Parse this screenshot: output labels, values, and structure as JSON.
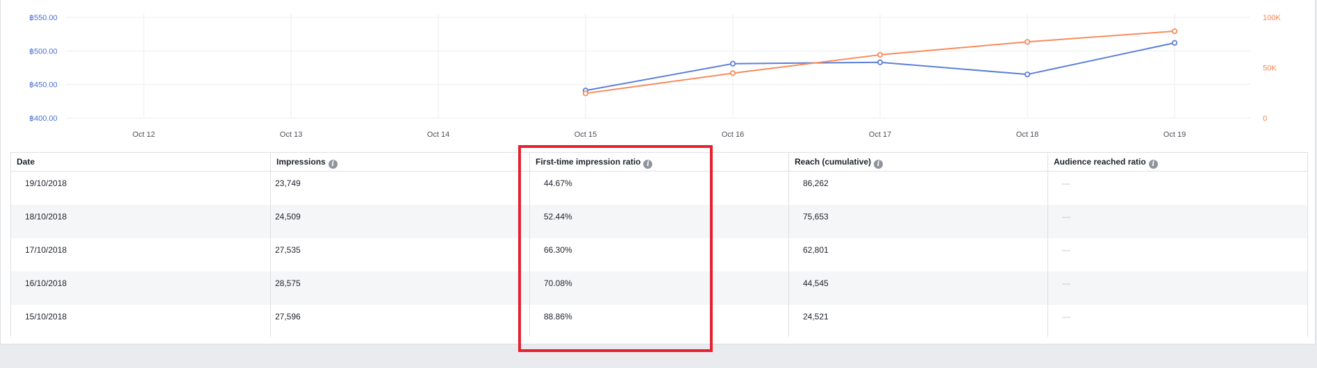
{
  "chart_data": {
    "type": "line",
    "x": [
      "Oct 12",
      "Oct 13",
      "Oct 14",
      "Oct 15",
      "Oct 16",
      "Oct 17",
      "Oct 18",
      "Oct 19"
    ],
    "y_left_ticks": [
      "฿400.00",
      "฿450.00",
      "฿500.00",
      "฿550.00"
    ],
    "y_left_range": [
      400,
      550
    ],
    "y_right_ticks": [
      "0",
      "50K",
      "100K"
    ],
    "y_right_range": [
      0,
      100000
    ],
    "grid": true,
    "series": [
      {
        "axis": "left",
        "color": "#5b7fd6",
        "values": [
          null,
          null,
          null,
          441,
          481,
          483,
          465,
          512
        ]
      },
      {
        "axis": "right",
        "color": "#f78b5c",
        "values": [
          null,
          null,
          null,
          24521,
          44545,
          62801,
          75653,
          86262
        ]
      }
    ]
  },
  "table": {
    "headers": [
      "Date",
      "Impressions",
      "First-time impression ratio",
      "Reach (cumulative)",
      "Audience reached ratio"
    ],
    "rows": [
      [
        "19/10/2018",
        "23,749",
        "44.67%",
        "86,262",
        "—"
      ],
      [
        "18/10/2018",
        "24,509",
        "52.44%",
        "75,653",
        "—"
      ],
      [
        "17/10/2018",
        "27,535",
        "66.30%",
        "62,801",
        "—"
      ],
      [
        "16/10/2018",
        "28,575",
        "70.08%",
        "44,545",
        "—"
      ],
      [
        "15/10/2018",
        "27,596",
        "88.86%",
        "24,521",
        "—"
      ]
    ]
  },
  "colors": {
    "left_axis": "#4a6fd1",
    "right_axis": "#f6844f",
    "highlight": "#e5212f"
  }
}
